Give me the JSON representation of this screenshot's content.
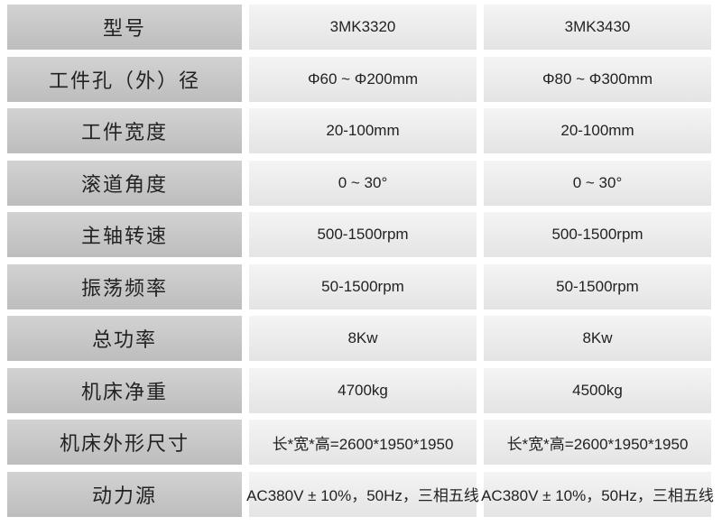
{
  "table": {
    "rows": [
      [
        "型号",
        "3MK3320",
        "3MK3430"
      ],
      [
        "工件孔（外）径",
        "Φ60 ~ Φ200mm",
        "Φ80 ~ Φ300mm"
      ],
      [
        "工件宽度",
        "20-100mm",
        "20-100mm"
      ],
      [
        "滚道角度",
        "0 ~ 30°",
        "0 ~ 30°"
      ],
      [
        "主轴转速",
        "500-1500rpm",
        "500-1500rpm"
      ],
      [
        "振荡频率",
        "50-1500rpm",
        "50-1500rpm"
      ],
      [
        "总功率",
        "8Kw",
        "8Kw"
      ],
      [
        "机床净重",
        "4700kg",
        "4500kg"
      ],
      [
        "机床外形尺寸",
        "长*宽*高=2600*1950*1950",
        "长*宽*高=2600*1950*1950"
      ],
      [
        "动力源",
        "AC380V ± 10%，50Hz，三相五线",
        "AC380V ± 10%，50Hz，三相五线"
      ]
    ]
  }
}
